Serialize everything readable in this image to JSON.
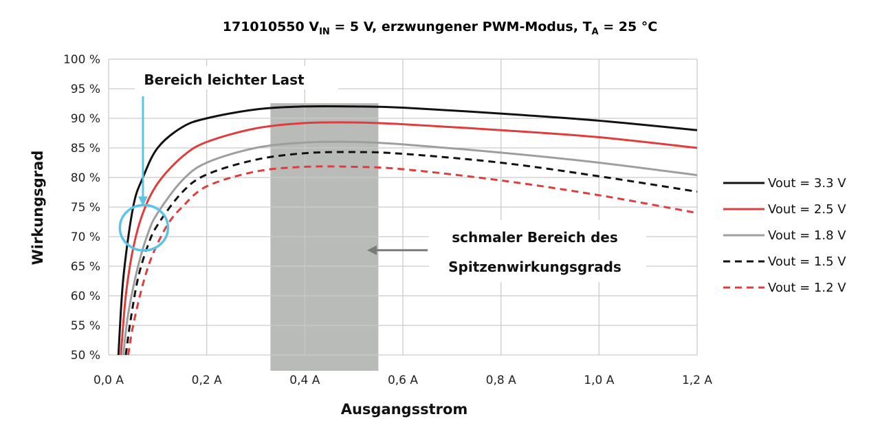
{
  "chart_data": {
    "type": "line",
    "title": {
      "main": "171010550 V",
      "vin_sub": "IN",
      "mid": " = 5 V, erzwungener PWM-Modus, T",
      "ta_sub": "A",
      "end": " = 25 °C"
    },
    "xlabel": "Ausgangsstrom",
    "ylabel": "Wirkungsgrad",
    "xlim": [
      0,
      1.2
    ],
    "ylim": [
      50,
      100
    ],
    "x_ticks": [
      {
        "value": 0.0,
        "label": "0,0 A"
      },
      {
        "value": 0.2,
        "label": "0,2 A"
      },
      {
        "value": 0.4,
        "label": "0,4 A"
      },
      {
        "value": 0.6,
        "label": "0,6 A"
      },
      {
        "value": 0.8,
        "label": "0,8 A"
      },
      {
        "value": 1.0,
        "label": "1,0 A"
      },
      {
        "value": 1.2,
        "label": "1,2 A"
      }
    ],
    "y_ticks": [
      {
        "value": 50,
        "label": "50 %"
      },
      {
        "value": 55,
        "label": "55 %"
      },
      {
        "value": 60,
        "label": "60 %"
      },
      {
        "value": 65,
        "label": "65 %"
      },
      {
        "value": 70,
        "label": "70 %"
      },
      {
        "value": 75,
        "label": "75 %"
      },
      {
        "value": 80,
        "label": "80 %"
      },
      {
        "value": 85,
        "label": "85 %"
      },
      {
        "value": 90,
        "label": "90 %"
      },
      {
        "value": 95,
        "label": "95 %"
      },
      {
        "value": 100,
        "label": "100 %"
      }
    ],
    "grid": true,
    "legend_position": "right",
    "series": [
      {
        "name": "Vout = 3.3 V",
        "color": "#111111",
        "dash": "solid",
        "x": [
          0.02,
          0.03,
          0.05,
          0.07,
          0.1,
          0.15,
          0.2,
          0.3,
          0.4,
          0.5,
          0.6,
          0.8,
          1.0,
          1.2
        ],
        "y": [
          50,
          63,
          75,
          80,
          85,
          88.5,
          90,
          91.5,
          92,
          92,
          91.8,
          90.8,
          89.6,
          88
        ]
      },
      {
        "name": "Vout = 2.5 V",
        "color": "#e03c3c",
        "dash": "solid",
        "x": [
          0.025,
          0.035,
          0.05,
          0.07,
          0.1,
          0.15,
          0.2,
          0.3,
          0.4,
          0.5,
          0.6,
          0.8,
          1.0,
          1.2
        ],
        "y": [
          50,
          60,
          68,
          74,
          79,
          83.5,
          86,
          88.3,
          89.2,
          89.3,
          89,
          88,
          86.8,
          85
        ]
      },
      {
        "name": "Vout = 1.8 V",
        "color": "#9e9e9e",
        "dash": "solid",
        "x": [
          0.03,
          0.04,
          0.06,
          0.08,
          0.1,
          0.15,
          0.2,
          0.3,
          0.4,
          0.5,
          0.6,
          0.8,
          1.0,
          1.2
        ],
        "y": [
          50,
          57,
          65,
          70.5,
          74,
          79.5,
          82.5,
          85,
          85.9,
          86,
          85.6,
          84.2,
          82.5,
          80.4
        ]
      },
      {
        "name": "Vout = 1.5 V",
        "color": "#111111",
        "dash": "dashed",
        "x": [
          0.035,
          0.045,
          0.06,
          0.08,
          0.1,
          0.15,
          0.2,
          0.3,
          0.4,
          0.5,
          0.6,
          0.8,
          1.0,
          1.2
        ],
        "y": [
          50,
          56,
          63,
          68.5,
          72,
          77.5,
          80.5,
          83,
          84.1,
          84.3,
          84,
          82.5,
          80.2,
          77.6
        ]
      },
      {
        "name": "Vout = 1.2 V",
        "color": "#e03c3c",
        "dash": "dashed",
        "x": [
          0.04,
          0.05,
          0.07,
          0.09,
          0.12,
          0.15,
          0.2,
          0.3,
          0.4,
          0.5,
          0.6,
          0.8,
          1.0,
          1.2
        ],
        "y": [
          50,
          55,
          62,
          67,
          72,
          75,
          78.5,
          81,
          81.8,
          81.8,
          81.4,
          79.5,
          77,
          74
        ]
      }
    ],
    "highlight_band": {
      "x_from": 0.33,
      "x_to": 0.55,
      "color": "#b9bbb8"
    },
    "annotations": {
      "light_load": "Bereich leichter Last",
      "peak_line1": "schmaler Bereich des",
      "peak_line2": "Spitzenwirkungsgrads"
    },
    "colors": {
      "light_load_marker": "#5bc3e6",
      "peak_arrow": "#7a7a7a",
      "grid": "#c9c9c9"
    }
  }
}
